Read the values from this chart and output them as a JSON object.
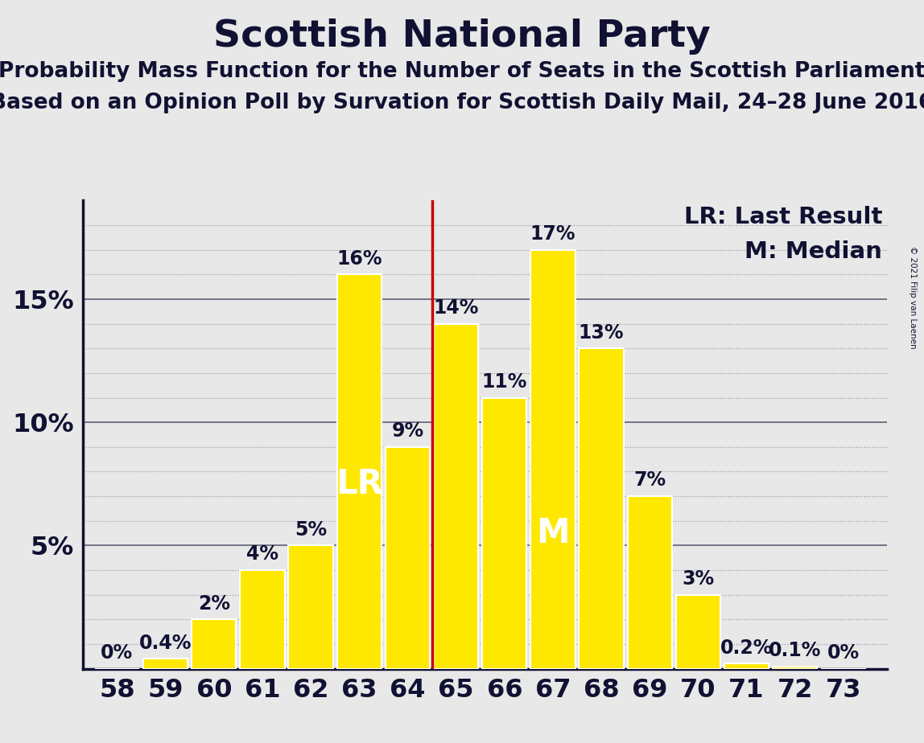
{
  "title": "Scottish National Party",
  "subtitle1": "Probability Mass Function for the Number of Seats in the Scottish Parliament",
  "subtitle2": "Based on an Opinion Poll by Survation for Scottish Daily Mail, 24–28 June 2016",
  "copyright": "© 2021 Filip van Laenen",
  "seats": [
    58,
    59,
    60,
    61,
    62,
    63,
    64,
    65,
    66,
    67,
    68,
    69,
    70,
    71,
    72,
    73
  ],
  "probabilities": [
    0.0,
    0.4,
    2.0,
    4.0,
    5.0,
    16.0,
    9.0,
    14.0,
    11.0,
    17.0,
    13.0,
    7.0,
    3.0,
    0.2,
    0.1,
    0.0
  ],
  "bar_color": "#FFE800",
  "bar_edge_color": "#FFFFFF",
  "lr_line_seat": 64.5,
  "lr_color": "#CC0000",
  "background_color": "#E8E8E8",
  "grid_color": "#333355",
  "ylim": [
    0,
    19
  ],
  "title_fontsize": 34,
  "subtitle_fontsize": 19,
  "axis_label_fontsize": 23,
  "bar_label_fontsize": 17,
  "legend_fontsize": 21,
  "lr_label_fontsize": 30,
  "median_label_fontsize": 30,
  "text_color": "#111133"
}
